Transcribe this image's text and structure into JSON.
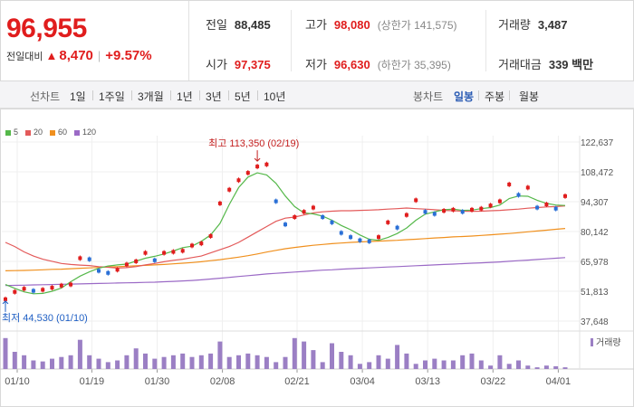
{
  "summary": {
    "price": "96,955",
    "change_label": "전일대비",
    "change_icon": "triangle-up-icon",
    "change_amount": "8,470",
    "change_rate": "+9.57%",
    "prev_close_label": "전일",
    "prev_close": "88,485",
    "high_label": "고가",
    "high": "98,080",
    "upper_limit": "(상한가 141,575)",
    "volume_label": "거래량",
    "volume": "3,487",
    "open_label": "시가",
    "open": "97,375",
    "low_label": "저가",
    "low": "96,630",
    "lower_limit": "(하한가 35,395)",
    "value_label": "거래대금",
    "value": "339 백만"
  },
  "toolbar": {
    "line_label": "선차트",
    "line_periods": [
      "1일",
      "1주일",
      "3개월",
      "1년",
      "3년",
      "5년",
      "10년"
    ],
    "candle_label": "봉차트",
    "candle_periods": [
      "일봉",
      "주봉",
      "월봉"
    ],
    "active_candle": "일봉"
  },
  "colors": {
    "up": "#e01d1d",
    "down": "#2a6fd6",
    "ma5": "#55b84a",
    "ma20": "#e35a5a",
    "ma60": "#f0901e",
    "ma120": "#9b6ac6",
    "volume": "#9b7fc4"
  },
  "chart_data": {
    "type": "candlestick",
    "legend": [
      {
        "name": "5",
        "color": "#55b84a"
      },
      {
        "name": "20",
        "color": "#e35a5a"
      },
      {
        "name": "60",
        "color": "#f0901e"
      },
      {
        "name": "120",
        "color": "#9b6ac6"
      }
    ],
    "y_ticks": [
      "122,637",
      "108,472",
      "94,307",
      "80,142",
      "65,978",
      "51,813",
      "37,648"
    ],
    "ylim": [
      37648,
      122637
    ],
    "x_ticks": [
      {
        "label": "01/10",
        "index": 0
      },
      {
        "label": "01/19",
        "index": 8
      },
      {
        "label": "01/30",
        "index": 15
      },
      {
        "label": "02/08",
        "index": 22
      },
      {
        "label": "02/21",
        "index": 30
      },
      {
        "label": "03/04",
        "index": 37
      },
      {
        "label": "03/13",
        "index": 44
      },
      {
        "label": "03/22",
        "index": 51
      },
      {
        "label": "04/01",
        "index": 58
      }
    ],
    "max_annotation": "최고 113,350 (02/19)",
    "max_index": 27,
    "min_annotation": "최저 44,530 (01/10)",
    "min_index": 0,
    "volume_legend": "거래량",
    "close": [
      48000,
      51500,
      53000,
      52000,
      52500,
      53500,
      54500,
      55000,
      67500,
      67000,
      61500,
      60500,
      62000,
      64500,
      66000,
      70000,
      66500,
      70000,
      70500,
      71000,
      73500,
      74500,
      78000,
      93500,
      100000,
      104500,
      108000,
      111000,
      112000,
      94500,
      83500,
      87000,
      89500,
      91500,
      87000,
      84500,
      79500,
      77500,
      76000,
      75500,
      77500,
      84500,
      82000,
      88000,
      95000,
      89500,
      88500,
      90000,
      90500,
      89500,
      90500,
      91000,
      92500,
      94500,
      102500,
      97500,
      101000,
      91500,
      93000,
      91000,
      96955
    ],
    "ma5": [
      55000,
      53200,
      51500,
      50600,
      50800,
      51800,
      53300,
      56300,
      59000,
      61000,
      62700,
      63800,
      64300,
      64700,
      66100,
      67500,
      68400,
      69500,
      70900,
      72500,
      73200,
      75500,
      78500,
      84000,
      93000,
      101000,
      106000,
      108000,
      107000,
      103000,
      97000,
      92000,
      89000,
      88500,
      87500,
      85500,
      83000,
      81000,
      78500,
      76500,
      76000,
      77300,
      79200,
      81800,
      85500,
      88400,
      89500,
      90500,
      90800,
      90200,
      90300,
      91000,
      91500,
      92700,
      95800,
      97000,
      96900,
      95000,
      93500,
      92700,
      92500
    ],
    "ma20": [
      75000,
      73000,
      70500,
      68500,
      67000,
      66000,
      65000,
      64500,
      64200,
      64000,
      63500,
      63200,
      62800,
      63000,
      63500,
      64300,
      65000,
      65800,
      66500,
      67000,
      67800,
      68500,
      70000,
      71500,
      73000,
      75000,
      77500,
      80000,
      82500,
      85000,
      86500,
      87000,
      88000,
      89000,
      89500,
      89800,
      90000,
      90000,
      90200,
      90300,
      90500,
      90800,
      91000,
      91300,
      91000,
      90800,
      90500,
      90200,
      90000,
      89800,
      89700,
      89800,
      90000,
      90200,
      90500,
      90800,
      91200,
      91500,
      91800,
      92000,
      92300
    ],
    "ma60": [
      61500,
      61600,
      61700,
      61800,
      62000,
      62200,
      62300,
      62500,
      62700,
      62900,
      63100,
      63300,
      63500,
      63700,
      63900,
      64100,
      64300,
      64500,
      64800,
      65100,
      65400,
      65800,
      66300,
      66800,
      67400,
      68000,
      68700,
      69500,
      70400,
      71200,
      72000,
      72600,
      73100,
      73600,
      74000,
      74400,
      74700,
      75000,
      75200,
      75400,
      75600,
      75800,
      76000,
      76300,
      76500,
      76800,
      77100,
      77300,
      77600,
      77800,
      78000,
      78300,
      78600,
      78900,
      79200,
      79600,
      80000,
      80400,
      80800,
      81200,
      81600
    ],
    "ma120": [
      54500,
      54600,
      54700,
      54800,
      54900,
      55000,
      55100,
      55200,
      55300,
      55400,
      55500,
      55600,
      55700,
      55800,
      55900,
      56000,
      56100,
      56300,
      56500,
      56700,
      56900,
      57200,
      57600,
      58000,
      58400,
      58800,
      59200,
      59600,
      60000,
      60300,
      60600,
      60900,
      61200,
      61500,
      61800,
      62000,
      62300,
      62500,
      62700,
      62900,
      63100,
      63300,
      63500,
      63700,
      63900,
      64100,
      64300,
      64500,
      64700,
      64900,
      65100,
      65300,
      65500,
      65700,
      66000,
      66300,
      66600,
      66900,
      67200,
      67500,
      67800
    ],
    "volume": [
      90,
      50,
      40,
      25,
      22,
      30,
      35,
      40,
      85,
      40,
      30,
      20,
      25,
      40,
      60,
      45,
      30,
      35,
      40,
      45,
      35,
      40,
      45,
      80,
      35,
      40,
      45,
      40,
      35,
      20,
      35,
      90,
      80,
      55,
      20,
      75,
      50,
      40,
      15,
      20,
      40,
      30,
      70,
      45,
      15,
      25,
      30,
      25,
      25,
      40,
      45,
      25,
      10,
      40,
      15,
      25,
      10,
      5,
      10,
      8,
      5
    ]
  }
}
